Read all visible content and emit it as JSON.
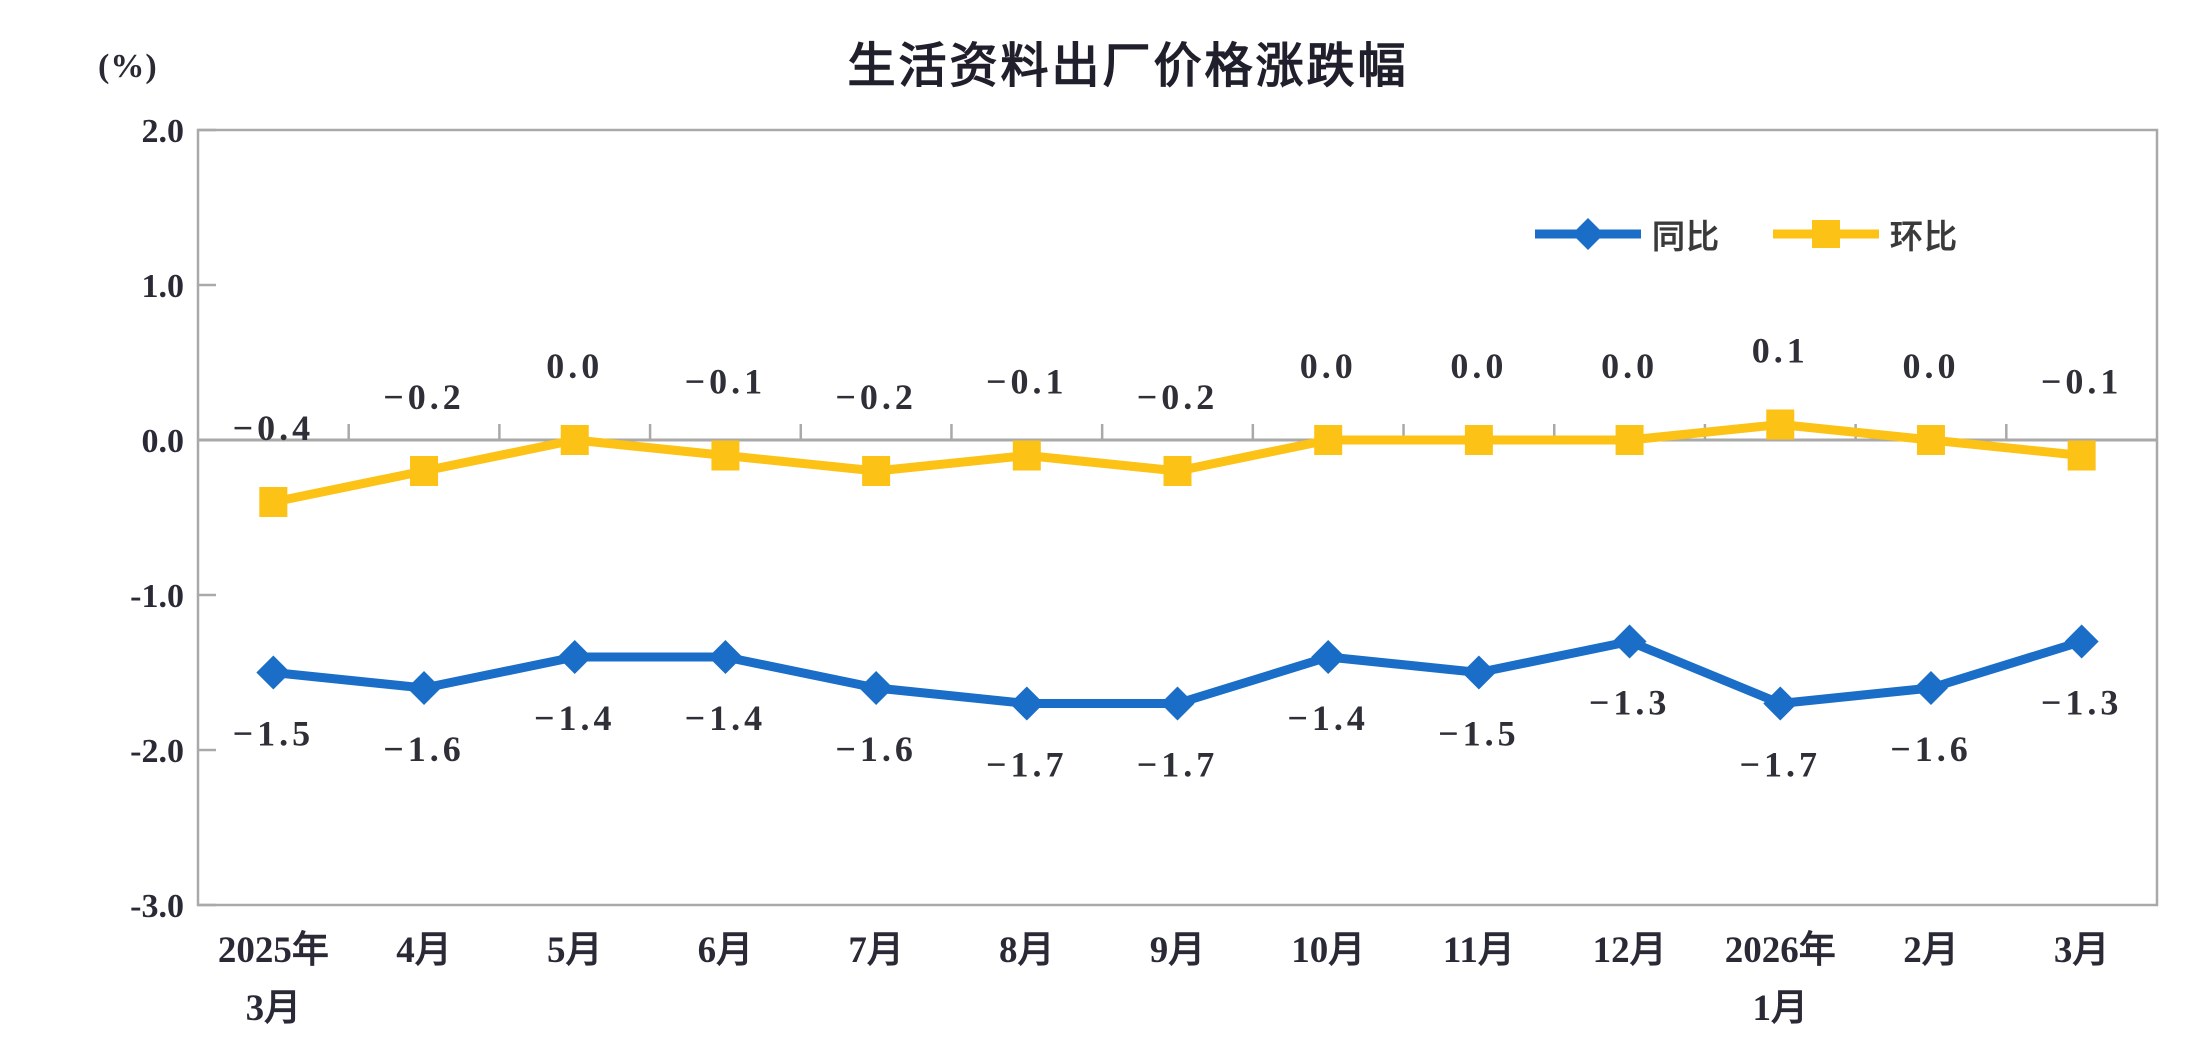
{
  "page": {
    "background": "#ffffff"
  },
  "chart_data": {
    "type": "line",
    "title": "生活资料出厂价格涨跌幅",
    "unit_label": "(%)",
    "categories": [
      "2025年\n3月",
      "4月",
      "5月",
      "6月",
      "7月",
      "8月",
      "9月",
      "10月",
      "11月",
      "12月",
      "2026年\n1月",
      "2月",
      "3月"
    ],
    "series": [
      {
        "name": "同比",
        "color": "#1a6ec7",
        "marker": "diamond",
        "values": [
          -1.5,
          -1.6,
          -1.4,
          -1.4,
          -1.6,
          -1.7,
          -1.7,
          -1.4,
          -1.5,
          -1.3,
          -1.7,
          -1.6,
          -1.3
        ],
        "labels": [
          "−1.5",
          "−1.6",
          "−1.4",
          "−1.4",
          "−1.6",
          "−1.7",
          "−1.7",
          "−1.4",
          "−1.5",
          "−1.3",
          "−1.7",
          "−1.6",
          "−1.3"
        ]
      },
      {
        "name": "环比",
        "color": "#fcc216",
        "marker": "square",
        "values": [
          -0.4,
          -0.2,
          0.0,
          -0.1,
          -0.2,
          -0.1,
          -0.2,
          0.0,
          0.0,
          0.0,
          0.1,
          0.0,
          -0.1
        ],
        "labels": [
          "−0.4",
          "−0.2",
          "0.0",
          "−0.1",
          "−0.2",
          "−0.1",
          "−0.2",
          "0.0",
          "0.0",
          "0.0",
          "0.1",
          "0.0",
          "−0.1"
        ]
      }
    ],
    "y_axis": {
      "min": -3.0,
      "max": 2.0,
      "ticks": [
        "2.0",
        "1.0",
        "0.0",
        "-1.0",
        "-2.0",
        "-3.0"
      ],
      "tick_values": [
        2.0,
        1.0,
        0.0,
        -1.0,
        -2.0,
        -3.0
      ]
    },
    "legend_position": "top-right",
    "grid": false,
    "axis_color": "#a9a9a9",
    "label_color": "#2a2a36"
  }
}
